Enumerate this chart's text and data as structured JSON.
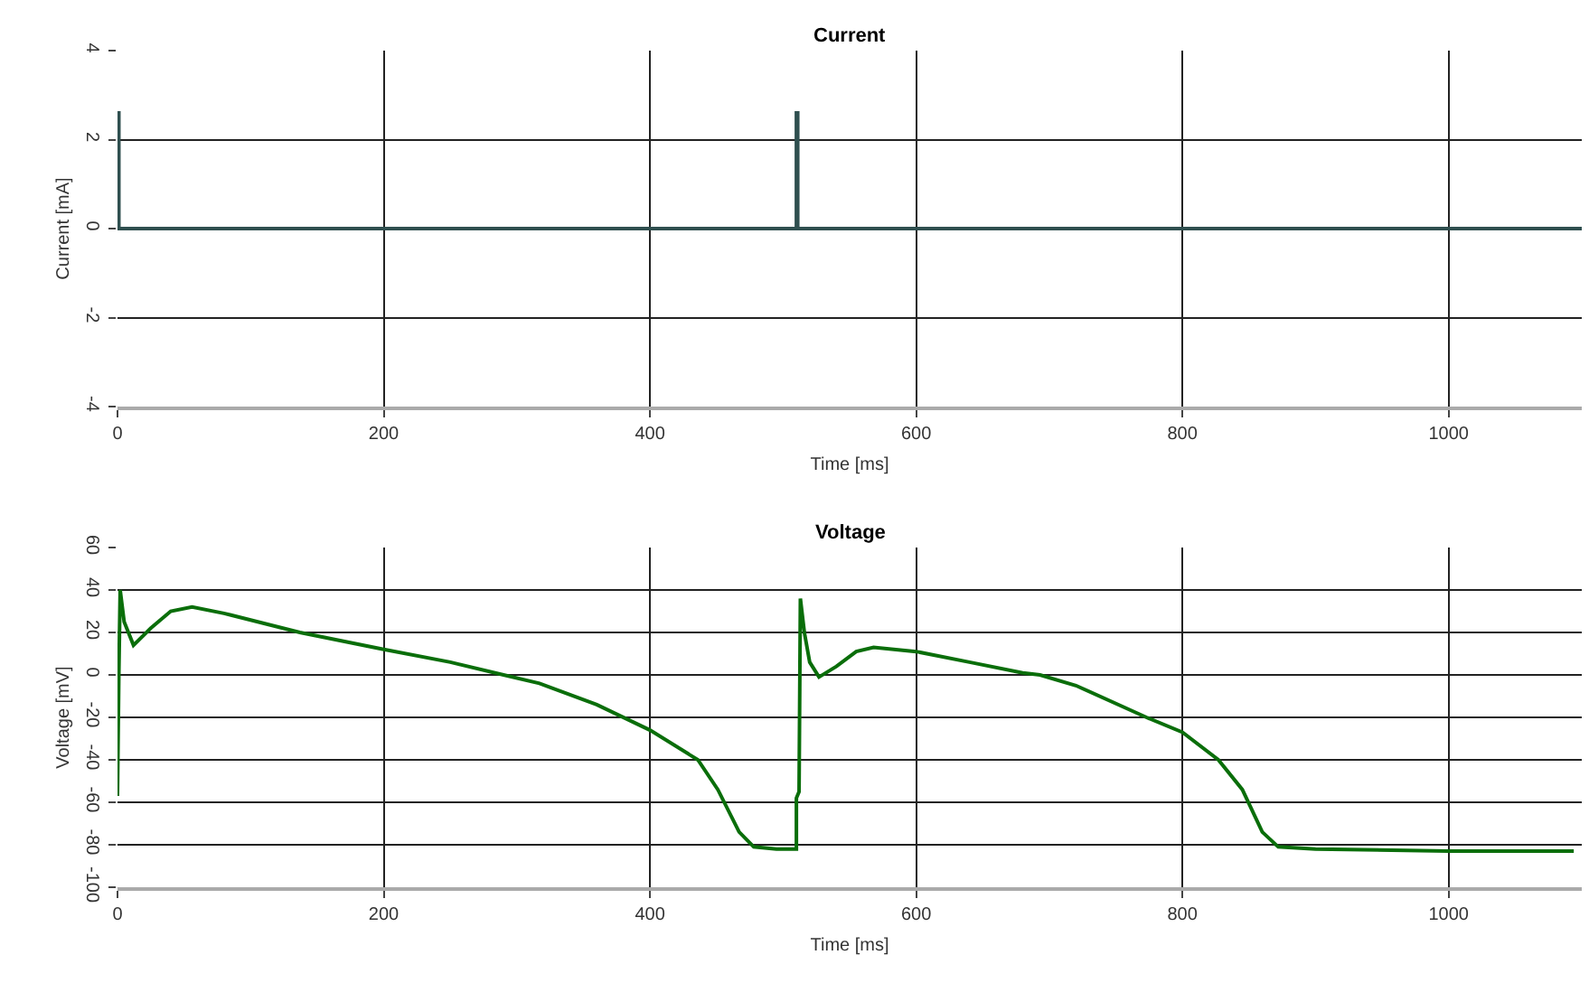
{
  "chart_data": [
    {
      "type": "line",
      "title": "Current",
      "xlabel": "Time [ms]",
      "ylabel": "Current [mA]",
      "xlim": [
        0,
        1100
      ],
      "xticks": [
        0,
        200,
        400,
        600,
        800,
        1000
      ],
      "ylim": [
        -4,
        4
      ],
      "yticks": [
        -4,
        -2,
        0,
        2,
        4
      ],
      "grid": true,
      "marker": "none",
      "line_style": "solid",
      "series": [
        {
          "color": "#2f4f4f",
          "x": [
            0,
            0,
            1,
            1,
            510,
            510,
            511,
            511,
            1100
          ],
          "values": [
            0,
            2.6,
            2.6,
            0,
            0,
            2.6,
            2.6,
            0,
            0
          ]
        }
      ]
    },
    {
      "type": "line",
      "title": "Voltage",
      "xlabel": "Time [ms]",
      "ylabel": "Voltage [mV]",
      "xlim": [
        0,
        1100
      ],
      "xticks": [
        0,
        200,
        400,
        600,
        800,
        1000
      ],
      "ylim": [
        -100,
        60
      ],
      "yticks": [
        {
          "value": -100,
          "label": "-100"
        },
        -80,
        -60,
        -40,
        -20,
        0,
        20,
        40,
        60
      ],
      "grid": true,
      "marker": "none",
      "line_style": "solid",
      "series": [
        {
          "color": "#0a6e0a",
          "x": [
            0,
            1,
            2,
            5,
            12,
            25,
            40,
            56,
            80,
            137,
            200,
            250,
            290,
            317,
            360,
            400,
            436,
            451,
            467,
            478,
            495,
            510,
            510,
            512,
            513,
            516,
            520,
            527,
            540,
            555,
            568,
            600,
            640,
            680,
            693,
            720,
            773,
            800,
            827,
            845,
            860,
            872,
            900,
            1000,
            1094
          ],
          "values": [
            -57,
            0,
            40,
            25,
            14,
            22,
            30,
            32,
            29,
            20,
            12,
            6,
            0,
            -4,
            -14,
            -26,
            -40,
            -54,
            -74,
            -81,
            -82,
            -82,
            -58,
            -55,
            36,
            20,
            6,
            -1,
            4,
            11,
            13,
            11,
            6,
            1,
            0,
            -5,
            -20,
            -27,
            -40,
            -54,
            -74,
            -81,
            -82,
            -83,
            -83
          ]
        }
      ]
    }
  ]
}
